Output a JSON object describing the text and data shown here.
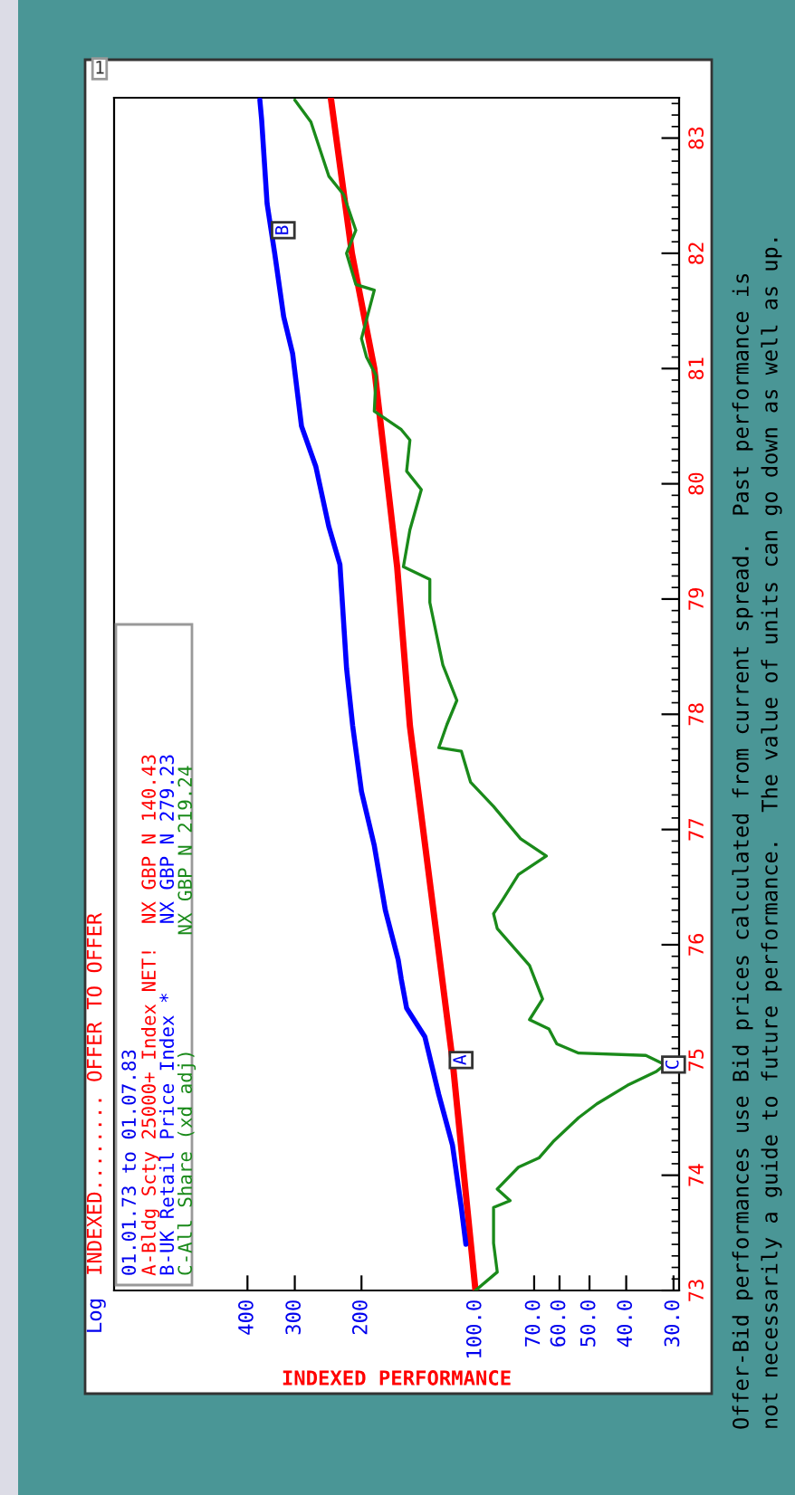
{
  "chart_data": {
    "type": "line",
    "title": "INDEXED........ OFFER TO OFFER",
    "subtitle": "Log",
    "xlabel": "INDEXED PERFORMANCE",
    "legend_title": "01.01.73 to 01.07.83",
    "legend": "bottom left",
    "log": "x",
    "xlim": [
      900,
      29
    ],
    "xticks": [
      {
        "value": 30,
        "label": "30.0"
      },
      {
        "value": 40,
        "label": "40.0"
      },
      {
        "value": 50,
        "label": "50.0"
      },
      {
        "value": 60,
        "label": "60.0"
      },
      {
        "value": 70,
        "label": "70.0"
      },
      {
        "value": 100,
        "label": "100.0"
      },
      200,
      300,
      400
    ],
    "ylim": [
      73,
      83.35
    ],
    "yticks": [
      73,
      74,
      75,
      76,
      77,
      78,
      79,
      80,
      81,
      82,
      83
    ],
    "series": [
      {
        "name": "A-Bldg Scty 25000+ Index NET!  NX GBP N 140.43",
        "color": "#ff0000",
        "x": [
          100,
          115,
          149,
          161,
          185,
          212,
          241
        ],
        "values": [
          73,
          75,
          77.9,
          79.28,
          81,
          82,
          83.35
        ]
      },
      {
        "name": "B-UK Retail Price Index *      NX GBP N 279.23",
        "color": "#0000ff",
        "x": [
          106,
          109,
          115,
          125,
          136,
          152,
          157,
          160,
          173,
          185,
          200,
          211,
          219,
          228,
          244,
          264,
          288,
          304,
          321,
          339,
          355,
          367,
          371
        ],
        "values": [
          73.4,
          73.72,
          74.26,
          74.7,
          75.2,
          75.45,
          75.7,
          75.87,
          76.3,
          76.86,
          77.33,
          77.9,
          78.4,
          79.3,
          79.63,
          80.15,
          80.5,
          81.13,
          81.45,
          82.0,
          82.43,
          83.16,
          83.33
        ]
      },
      {
        "name": "C-All Share (xd adj)          NX GBP N 219.24",
        "color": "#1a8a1a",
        "x": [
          100,
          87.6,
          89.6,
          89.6,
          81,
          87.6,
          77,
          68,
          62,
          53.4,
          47.8,
          39.7,
          33.3,
          31.6,
          35.5,
          53.4,
          61,
          64,
          72,
          66.5,
          72,
          87.6,
          89.6,
          84.8,
          77,
          65,
          76,
          89.6,
          103,
          109,
          125,
          119,
          112,
          122,
          132,
          132,
          155,
          149,
          139,
          152,
          149,
          157,
          185,
          183,
          194,
          200,
          185,
          207,
          219,
          207,
          223,
          244,
          272,
          300
        ],
        "values": [
          73,
          73.16,
          73.41,
          73.72,
          73.78,
          73.88,
          74.07,
          74.15,
          74.3,
          74.5,
          74.62,
          74.78,
          74.9,
          74.96,
          75.04,
          75.06,
          75.14,
          75.27,
          75.35,
          75.53,
          75.82,
          76.14,
          76.27,
          76.39,
          76.61,
          76.77,
          76.92,
          77.2,
          77.41,
          77.68,
          77.71,
          77.91,
          78.12,
          78.43,
          78.97,
          79.17,
          79.28,
          79.6,
          79.95,
          80.11,
          80.38,
          80.47,
          80.63,
          80.94,
          81.1,
          81.26,
          81.68,
          81.73,
          82.0,
          82.2,
          82.51,
          82.67,
          83.14,
          83.33
        ]
      }
    ],
    "annotations": [
      {
        "text": "A",
        "x": 115,
        "y": 75
      },
      {
        "text": "B",
        "x": 339,
        "y": 82.2
      },
      {
        "text": "C",
        "x": 31.6,
        "y": 74.96
      },
      "1",
      "Offer-Bid performances use Bid prices calculated from current spread.  Past performance is",
      "not necessarily a guide to future performance.  The value of units can go down as well as up."
    ]
  }
}
